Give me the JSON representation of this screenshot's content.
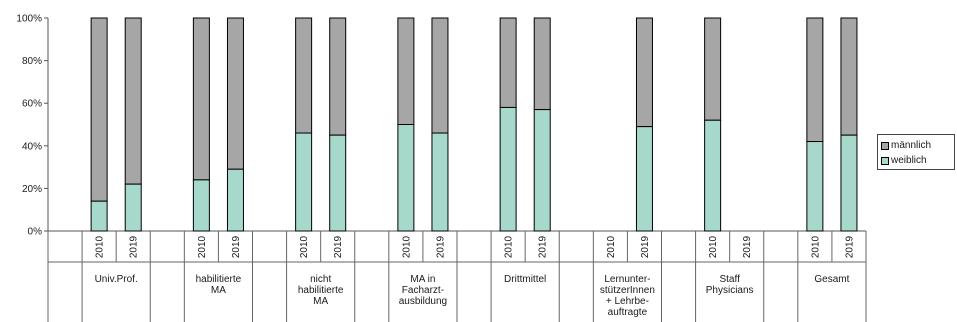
{
  "chart_data": {
    "type": "bar",
    "stacked": true,
    "percent_stacked": true,
    "title": "",
    "xlabel": "",
    "ylabel": "",
    "ylim": [
      0,
      100
    ],
    "y_ticks": [
      "0%",
      "20%",
      "40%",
      "60%",
      "80%",
      "100%"
    ],
    "grid": false,
    "legend_position": "right",
    "groups": [
      {
        "label": [
          "Univ.Prof."
        ],
        "years": [
          "2010",
          "2019"
        ],
        "weiblich": [
          14,
          22
        ]
      },
      {
        "label": [
          "habilitierte",
          "MA"
        ],
        "years": [
          "2010",
          "2019"
        ],
        "weiblich": [
          24,
          29
        ]
      },
      {
        "label": [
          "nicht",
          "habilitierte",
          "MA"
        ],
        "years": [
          "2010",
          "2019"
        ],
        "weiblich": [
          46,
          45
        ]
      },
      {
        "label": [
          "MA in",
          "Facharzt-",
          "ausbildung"
        ],
        "years": [
          "2010",
          "2019"
        ],
        "weiblich": [
          50,
          46
        ]
      },
      {
        "label": [
          "Drittmittel"
        ],
        "years": [
          "2010",
          "2019"
        ],
        "weiblich": [
          58,
          57
        ]
      },
      {
        "label": [
          "Lernunter-",
          "stützerInnen",
          "+ Lehrbe-",
          "auftragte"
        ],
        "years": [
          "2010",
          "2019"
        ],
        "weiblich": [
          null,
          49
        ]
      },
      {
        "label": [
          "Staff",
          "Physicians"
        ],
        "years": [
          "2010",
          "2019"
        ],
        "weiblich": [
          52,
          null
        ]
      },
      {
        "label": [
          "Gesamt"
        ],
        "years": [
          "2010",
          "2019"
        ],
        "weiblich": [
          42,
          45
        ]
      }
    ],
    "series": [
      {
        "name": "männlich",
        "color": "#a6a6a6"
      },
      {
        "name": "weiblich",
        "color": "#a6d8cc"
      }
    ]
  },
  "legend": {
    "items": [
      {
        "label": "männlich",
        "color": "#a6a6a6"
      },
      {
        "label": "weiblich",
        "color": "#a6d8cc"
      }
    ]
  }
}
